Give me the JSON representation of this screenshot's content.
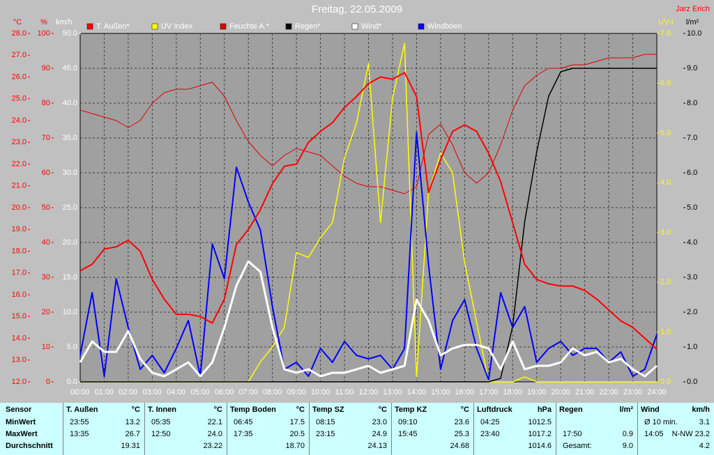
{
  "chart_data": {
    "type": "line",
    "title": "Freitag, 22.05.2009",
    "corner_label": "Jarz Erich",
    "grid": true,
    "x": [
      0,
      0.5,
      1,
      1.5,
      2,
      2.5,
      3,
      3.5,
      4,
      4.5,
      5,
      5.5,
      6,
      6.5,
      7,
      7.5,
      8,
      8.5,
      9,
      9.5,
      10,
      10.5,
      11,
      11.5,
      12,
      12.5,
      13,
      13.5,
      14,
      14.5,
      15,
      15.5,
      16,
      16.5,
      17,
      17.5,
      18,
      18.5,
      19,
      19.5,
      20,
      20.5,
      21,
      21.5,
      22,
      22.5,
      23,
      23.5,
      24
    ],
    "xlim": [
      0,
      24
    ],
    "xticks": [
      {
        "value": 0,
        "label": "00:00"
      },
      {
        "value": 1,
        "label": "01:00"
      },
      {
        "value": 2,
        "label": "02:00"
      },
      {
        "value": 3,
        "label": "03:00"
      },
      {
        "value": 4,
        "label": "04:00"
      },
      {
        "value": 5,
        "label": "05:00"
      },
      {
        "value": 6,
        "label": "06:00"
      },
      {
        "value": 7,
        "label": "07:00"
      },
      {
        "value": 8,
        "label": "08:00"
      },
      {
        "value": 9,
        "label": "09:00"
      },
      {
        "value": 10,
        "label": "10:00"
      },
      {
        "value": 11,
        "label": "11:00"
      },
      {
        "value": 12,
        "label": "12:00"
      },
      {
        "value": 13,
        "label": "13:00"
      },
      {
        "value": 14,
        "label": "14:00"
      },
      {
        "value": 15,
        "label": "15:00"
      },
      {
        "value": 16,
        "label": "16:00"
      },
      {
        "value": 17,
        "label": "17:00"
      },
      {
        "value": 18,
        "label": "18:00"
      },
      {
        "value": 19,
        "label": "19:00"
      },
      {
        "value": 20,
        "label": "20:00"
      },
      {
        "value": 21,
        "label": "21:00"
      },
      {
        "value": 22,
        "label": "22:00"
      },
      {
        "value": 23,
        "label": "23:00"
      },
      {
        "value": 24,
        "label": "24:00"
      }
    ],
    "axes": [
      {
        "label": "°C",
        "color": "#ff0000",
        "lim": [
          12,
          28
        ],
        "ticks": [
          {
            "value": 12,
            "label": "12.0"
          },
          {
            "value": 13,
            "label": "13.0"
          },
          {
            "value": 14,
            "label": "14.0"
          },
          {
            "value": 15,
            "label": "15.0"
          },
          {
            "value": 16,
            "label": "16.0"
          },
          {
            "value": 17,
            "label": "17.0"
          },
          {
            "value": 18,
            "label": "18.0"
          },
          {
            "value": 19,
            "label": "19.0"
          },
          {
            "value": 20,
            "label": "20.0"
          },
          {
            "value": 21,
            "label": "21.0"
          },
          {
            "value": 22,
            "label": "22.0"
          },
          {
            "value": 23,
            "label": "23.0"
          },
          {
            "value": 24,
            "label": "24.0"
          },
          {
            "value": 25,
            "label": "25.0"
          },
          {
            "value": 26,
            "label": "26.0"
          },
          {
            "value": 27,
            "label": "27.0"
          },
          {
            "value": 28,
            "label": "28.0"
          }
        ]
      },
      {
        "label": "%",
        "color": "#ff0000",
        "lim": [
          0,
          100
        ],
        "ticks": [
          0,
          10,
          20,
          30,
          40,
          50,
          60,
          70,
          80,
          90,
          100
        ]
      },
      {
        "label": "km/h",
        "color": "#ffffff",
        "lim": [
          0,
          50
        ],
        "ticks": [
          {
            "value": 0,
            "label": "0.0"
          },
          {
            "value": 5,
            "label": "5.0"
          },
          {
            "value": 10,
            "label": "10.0"
          },
          {
            "value": 15,
            "label": "15.0"
          },
          {
            "value": 20,
            "label": "20.0"
          },
          {
            "value": 25,
            "label": "25.0"
          },
          {
            "value": 30,
            "label": "30.0"
          },
          {
            "value": 35,
            "label": "35.0"
          },
          {
            "value": 40,
            "label": "40.0"
          },
          {
            "value": 45,
            "label": "45.0"
          },
          {
            "value": 50,
            "label": "50.0"
          }
        ]
      },
      {
        "label": "UV-I",
        "color": "#ffff00",
        "lim": [
          0,
          7
        ],
        "ticks": [
          {
            "value": 0,
            "label": "0.0"
          },
          {
            "value": 1,
            "label": "1.0"
          },
          {
            "value": 2,
            "label": "2.0"
          },
          {
            "value": 3,
            "label": "3.0"
          },
          {
            "value": 4,
            "label": "4.0"
          },
          {
            "value": 5,
            "label": "5.0"
          },
          {
            "value": 6,
            "label": "6.0"
          },
          {
            "value": 7,
            "label": "7.0"
          }
        ]
      },
      {
        "label": "l/m²",
        "color": "#000000",
        "lim": [
          0,
          10
        ],
        "ticks": [
          {
            "value": 0,
            "label": "0.0"
          },
          {
            "value": 1,
            "label": "1.0"
          },
          {
            "value": 2,
            "label": "2.0"
          },
          {
            "value": 3,
            "label": "3.0"
          },
          {
            "value": 4,
            "label": "4.0"
          },
          {
            "value": 5,
            "label": "5.0"
          },
          {
            "value": 6,
            "label": "6.0"
          },
          {
            "value": 7,
            "label": "7.0"
          },
          {
            "value": 8,
            "label": "8.0"
          },
          {
            "value": 9,
            "label": "9.0"
          },
          {
            "value": 10,
            "label": "10.0"
          }
        ]
      }
    ],
    "series": [
      {
        "name": "T. Außen*",
        "color": "#ff0000",
        "axis": 0,
        "values": [
          17.1,
          17.4,
          18.1,
          18.2,
          18.5,
          18.0,
          16.7,
          15.8,
          15.1,
          15.1,
          15.0,
          14.7,
          15.8,
          18.3,
          19.0,
          19.9,
          21.1,
          21.9,
          22.0,
          23.0,
          23.5,
          23.9,
          24.6,
          25.1,
          25.7,
          26.0,
          25.9,
          26.2,
          25.1,
          20.7,
          22.2,
          23.5,
          23.8,
          23.5,
          22.5,
          21.2,
          19.3,
          17.4,
          16.7,
          16.5,
          16.4,
          16.4,
          16.2,
          15.8,
          15.3,
          14.8,
          14.5,
          14.0,
          13.5
        ]
      },
      {
        "name": "UV Index",
        "color": "#ffff00",
        "axis": 3,
        "values": [
          0,
          0,
          0,
          0,
          0,
          0,
          0,
          0,
          0,
          0,
          0,
          0,
          0,
          0,
          0,
          0.4,
          0.7,
          1.1,
          2.6,
          2.5,
          2.9,
          3.2,
          4.5,
          5.2,
          6.4,
          3.2,
          5.7,
          6.8,
          0.1,
          3.8,
          4.6,
          4.2,
          2.4,
          1.2,
          0,
          0,
          0,
          0.1,
          0,
          0,
          0,
          0,
          0,
          0,
          0,
          0,
          0,
          0,
          0
        ]
      },
      {
        "name": "Feuchte A.*",
        "color": "#e00000",
        "axis": 1,
        "values": [
          78,
          77,
          76,
          75,
          73,
          75,
          80,
          83,
          84,
          84,
          85,
          86,
          82,
          75,
          69,
          65,
          62,
          65,
          67,
          66,
          65,
          62,
          59,
          57,
          56,
          56,
          55,
          54,
          56,
          71,
          74,
          68,
          60,
          57,
          60,
          68,
          78,
          85,
          88,
          90,
          90,
          91,
          91,
          92,
          93,
          93,
          93,
          94,
          94
        ]
      },
      {
        "name": "Regen*",
        "color": "#000000",
        "axis": 4,
        "values": [
          0,
          0,
          0,
          0,
          0,
          0,
          0,
          0,
          0,
          0,
          0,
          0,
          0,
          0,
          0,
          0,
          0,
          0,
          0,
          0,
          0,
          0,
          0,
          0,
          0,
          0,
          0,
          0,
          0,
          0,
          0,
          0,
          0,
          0,
          0,
          0.1,
          1.6,
          4.6,
          6.6,
          8.2,
          8.9,
          9.0,
          9.0,
          9.0,
          9.0,
          9.0,
          9.0,
          9.0,
          9.0
        ]
      },
      {
        "name": "Wind*",
        "color": "#ffffff",
        "axis": 2,
        "values": [
          2.8,
          5.8,
          4.3,
          4.3,
          7.3,
          3.3,
          1.3,
          0.8,
          1.8,
          2.8,
          0.8,
          2.8,
          7.8,
          13.8,
          17.3,
          15.8,
          7.8,
          1.8,
          1.3,
          1.8,
          0.8,
          1.3,
          1.3,
          1.8,
          2.3,
          1.3,
          1.8,
          2.3,
          11.8,
          8.8,
          3.8,
          4.8,
          5.3,
          5.3,
          4.8,
          1.8,
          5.8,
          1.8,
          2.3,
          2.3,
          2.8,
          4.8,
          3.8,
          4.3,
          2.8,
          3.3,
          1.8,
          0.8,
          2.3
        ]
      },
      {
        "name": "Windböen",
        "color": "#0000ff",
        "axis": 2,
        "values": [
          3.8,
          12.8,
          0.8,
          14.8,
          7.8,
          1.8,
          3.8,
          1.3,
          4.8,
          8.8,
          0.8,
          19.8,
          14.8,
          30.8,
          25.8,
          21.8,
          10.8,
          1.8,
          2.8,
          0.8,
          4.8,
          2.8,
          5.8,
          3.8,
          3.3,
          3.8,
          1.8,
          4.8,
          35.8,
          16.8,
          1.8,
          8.8,
          11.8,
          4.8,
          0.3,
          12.8,
          7.8,
          10.8,
          2.8,
          4.8,
          5.8,
          3.8,
          4.8,
          4.8,
          2.8,
          4.3,
          0.8,
          1.8,
          6.8
        ]
      }
    ]
  },
  "table": {
    "header": [
      [
        "Sensor"
      ],
      [
        "T. Außen",
        "°C"
      ],
      [
        "T. Innen",
        "°C"
      ],
      [
        "Temp Boden",
        "°C"
      ],
      [
        "Temp SZ",
        "°C"
      ],
      [
        "Temp KZ",
        "°C"
      ],
      [
        "Luftdruck",
        "hPa"
      ],
      [
        "Regen",
        "l/m²"
      ],
      [
        "Wind",
        "km/h"
      ]
    ],
    "rows": [
      {
        "label": "MinWert",
        "cells": [
          [
            "23:55",
            "13.2"
          ],
          [
            "05:35",
            "22.1"
          ],
          [
            "06:45",
            "17.5"
          ],
          [
            "08:15",
            "23.0"
          ],
          [
            "09:10",
            "23.6"
          ],
          [
            "04:25",
            "1012.5"
          ],
          [],
          [
            "Ø 10 min.",
            "3.1"
          ]
        ]
      },
      {
        "label": "MaxWert",
        "cells": [
          [
            "13:35",
            "26.7"
          ],
          [
            "12:50",
            "24.0"
          ],
          [
            "17:35",
            "20.5"
          ],
          [
            "23:15",
            "24.9"
          ],
          [
            "15:45",
            "25.3"
          ],
          [
            "23:40",
            "1017.2"
          ],
          [
            "17:50",
            "0.9"
          ],
          [
            "14:05",
            "N-NW 23.2"
          ]
        ]
      },
      {
        "label": "Durchschnitt",
        "cells": [
          [
            "19.31"
          ],
          [
            "23.22"
          ],
          [
            "18.70"
          ],
          [
            "24.13"
          ],
          [
            "24.68"
          ],
          [
            "1014.6"
          ],
          [
            "Gesamt:",
            "9.0"
          ],
          [
            "4.2"
          ]
        ]
      }
    ]
  }
}
